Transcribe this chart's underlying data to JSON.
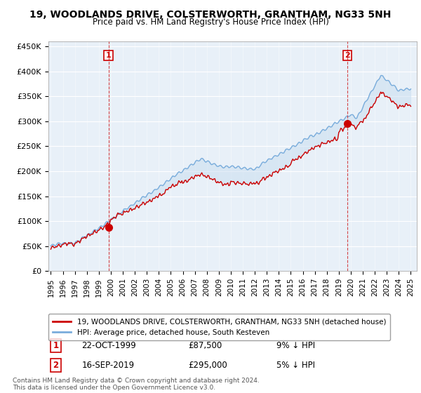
{
  "title": "19, WOODLANDS DRIVE, COLSTERWORTH, GRANTHAM, NG33 5NH",
  "subtitle": "Price paid vs. HM Land Registry's House Price Index (HPI)",
  "ylabel_ticks": [
    "£0",
    "£50K",
    "£100K",
    "£150K",
    "£200K",
    "£250K",
    "£300K",
    "£350K",
    "£400K",
    "£450K"
  ],
  "ytick_values": [
    0,
    50000,
    100000,
    150000,
    200000,
    250000,
    300000,
    350000,
    400000,
    450000
  ],
  "ylim": [
    0,
    460000
  ],
  "xlim_start": 1994.8,
  "xlim_end": 2025.5,
  "xtick_years": [
    1995,
    1996,
    1997,
    1998,
    1999,
    2000,
    2001,
    2002,
    2003,
    2004,
    2005,
    2006,
    2007,
    2008,
    2009,
    2010,
    2011,
    2012,
    2013,
    2014,
    2015,
    2016,
    2017,
    2018,
    2019,
    2020,
    2021,
    2022,
    2023,
    2024,
    2025
  ],
  "purchase1_x": 1999.8,
  "purchase1_y": 87500,
  "purchase1_label": "1",
  "purchase1_date": "22-OCT-1999",
  "purchase1_price": "£87,500",
  "purchase1_hpi": "9% ↓ HPI",
  "purchase2_x": 2019.7,
  "purchase2_y": 295000,
  "purchase2_label": "2",
  "purchase2_date": "16-SEP-2019",
  "purchase2_price": "£295,000",
  "purchase2_hpi": "5% ↓ HPI",
  "hpi_color": "#7aaddc",
  "hpi_fill_color": "#c8ddf0",
  "price_color": "#cc0000",
  "vline_color": "#cc0000",
  "bg_color": "#ffffff",
  "plot_bg_color": "#e8f0f8",
  "grid_color": "#ffffff",
  "legend_label_red": "19, WOODLANDS DRIVE, COLSTERWORTH, GRANTHAM, NG33 5NH (detached house)",
  "legend_label_blue": "HPI: Average price, detached house, South Kesteven",
  "footer": "Contains HM Land Registry data © Crown copyright and database right 2024.\nThis data is licensed under the Open Government Licence v3.0."
}
